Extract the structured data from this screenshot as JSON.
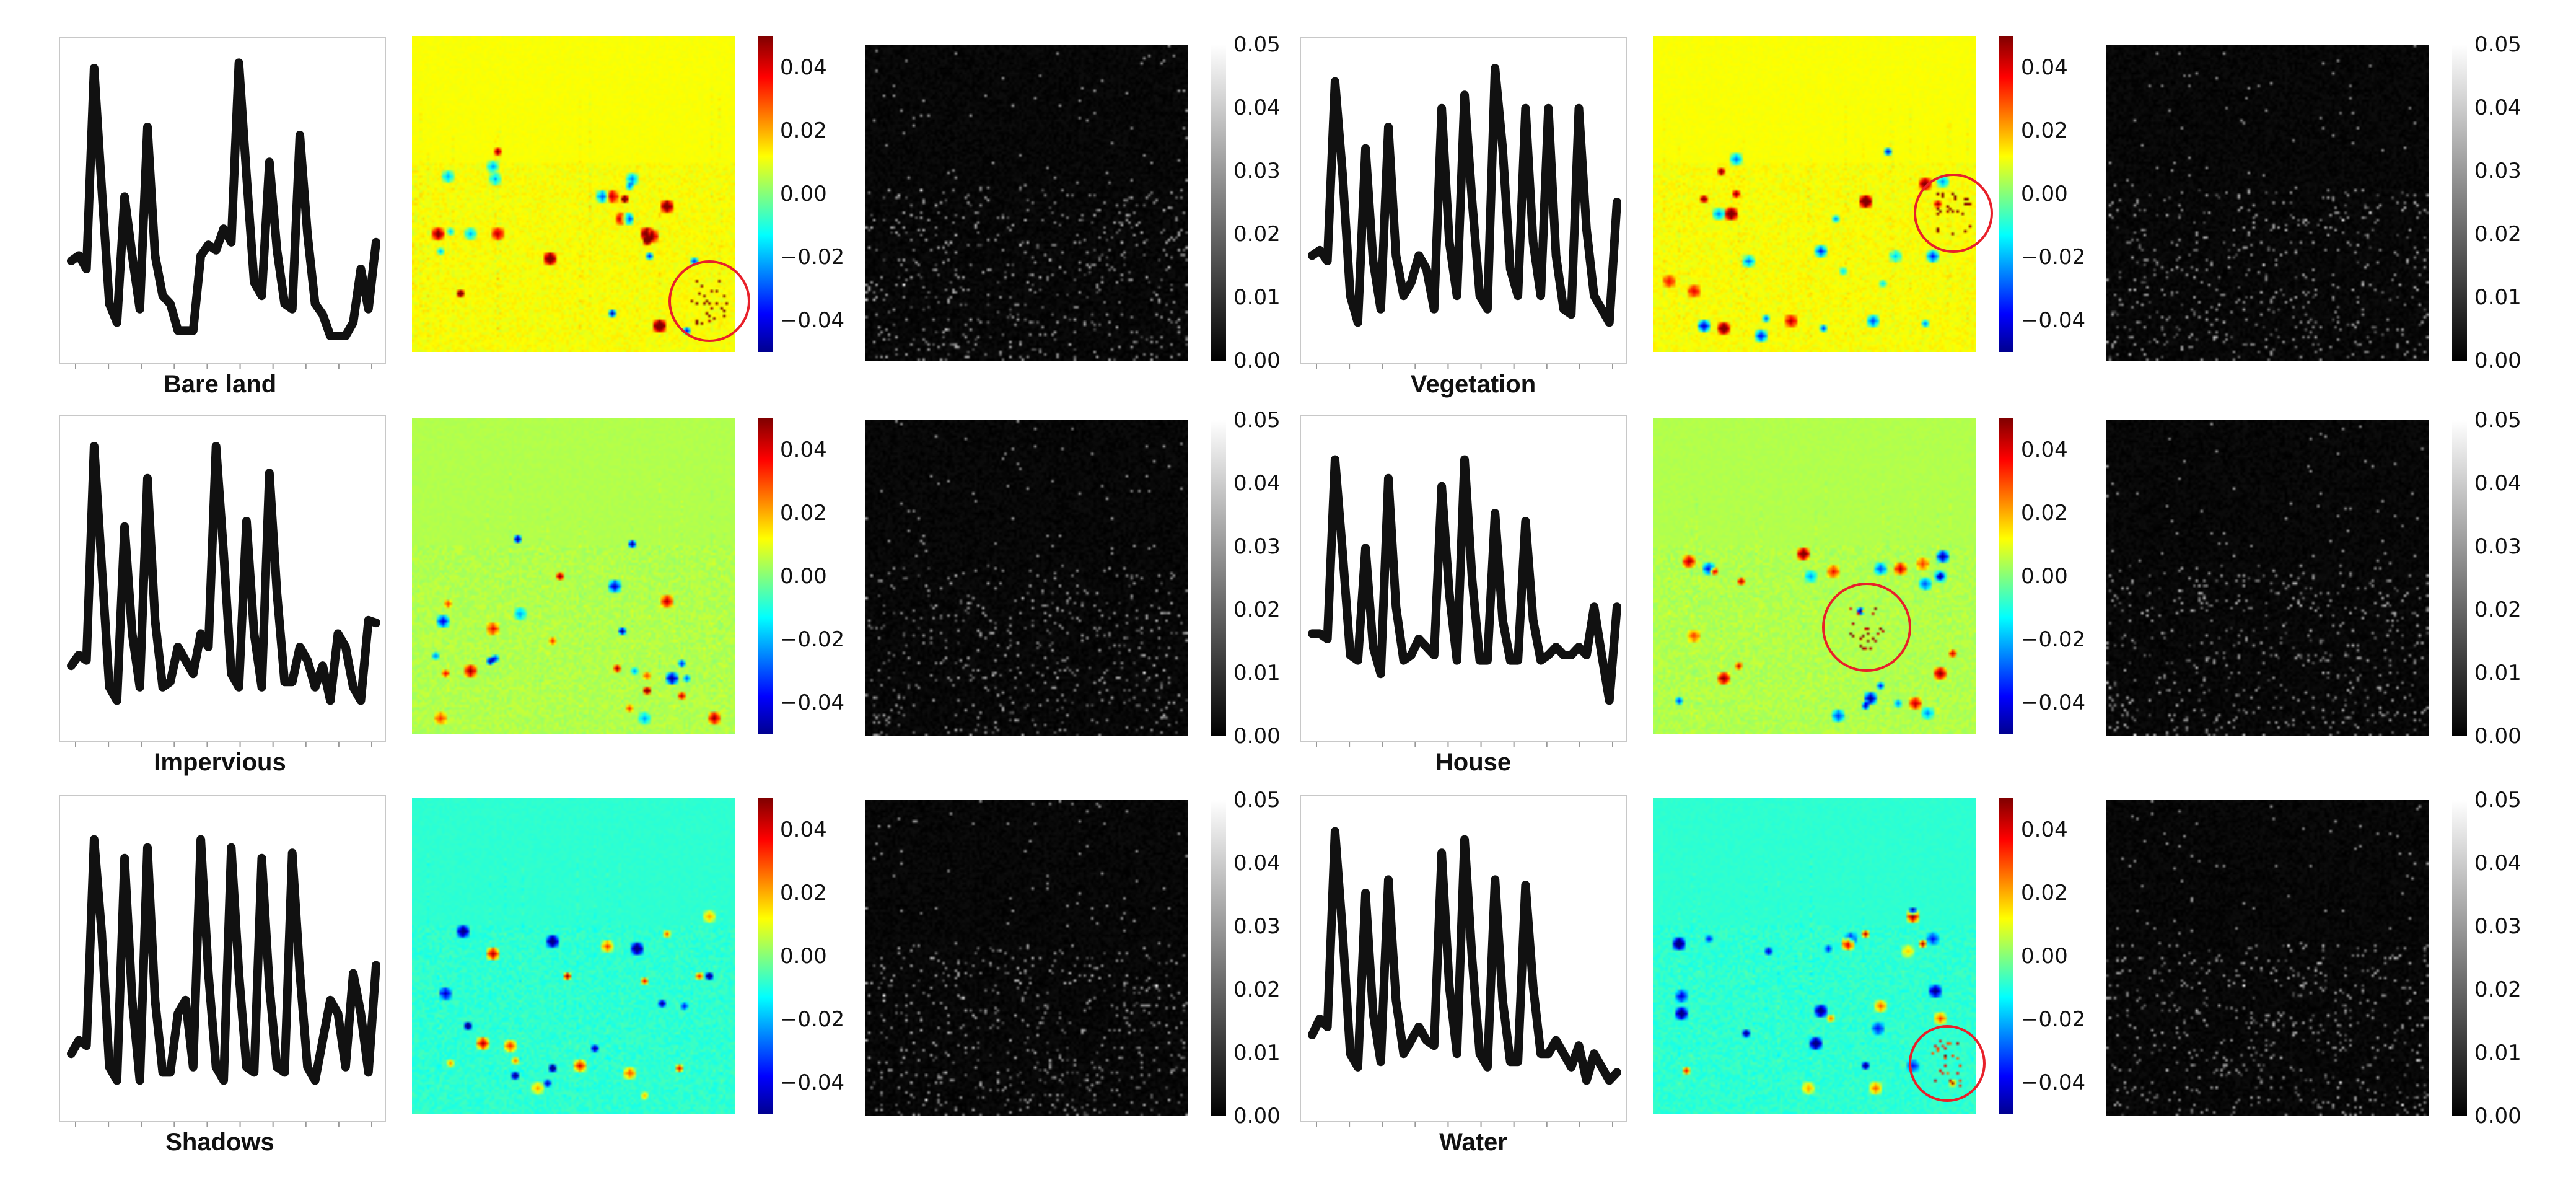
{
  "figure": {
    "panels": [
      {
        "id": "bare-land",
        "label": "Bare land",
        "circle": true
      },
      {
        "id": "vegetation",
        "label": "Vegetation",
        "circle": true
      },
      {
        "id": "impervious",
        "label": "Impervious",
        "circle": false
      },
      {
        "id": "house",
        "label": "House",
        "circle": true
      },
      {
        "id": "shadows",
        "label": "Shadows",
        "circle": false
      },
      {
        "id": "water",
        "label": "Water",
        "circle": true
      }
    ],
    "colorbar_diverging": {
      "colormap": "jet",
      "ticks": [
        "0.04",
        "0.02",
        "0.00",
        "−0.02",
        "−0.04"
      ],
      "range": [
        -0.05,
        0.05
      ]
    },
    "colorbar_gray": {
      "colormap": "gray",
      "ticks": [
        "0.05",
        "0.04",
        "0.03",
        "0.02",
        "0.01",
        "0.00"
      ],
      "range": [
        0,
        0.05
      ]
    },
    "circle_color": "#e8202a",
    "spectrum_color": "#111111"
  },
  "chart_data": [
    {
      "type": "line",
      "name": "Bare land spectrum",
      "values": [
        0.28,
        0.3,
        0.25,
        1.0,
        0.55,
        0.12,
        0.05,
        0.52,
        0.3,
        0.1,
        0.78,
        0.3,
        0.15,
        0.12,
        0.02,
        0.02,
        0.02,
        0.3,
        0.34,
        0.32,
        0.4,
        0.35,
        1.02,
        0.6,
        0.2,
        0.15,
        0.65,
        0.32,
        0.12,
        0.1,
        0.75,
        0.38,
        0.12,
        0.08,
        0.0,
        0.0,
        0.0,
        0.05,
        0.25,
        0.1,
        0.35
      ]
    },
    {
      "type": "line",
      "name": "Vegetation spectrum",
      "values": [
        0.3,
        0.32,
        0.28,
        0.95,
        0.6,
        0.15,
        0.05,
        0.7,
        0.28,
        0.1,
        0.78,
        0.3,
        0.15,
        0.2,
        0.3,
        0.25,
        0.1,
        0.85,
        0.35,
        0.15,
        0.9,
        0.5,
        0.15,
        0.1,
        1.0,
        0.7,
        0.25,
        0.15,
        0.85,
        0.35,
        0.15,
        0.85,
        0.3,
        0.1,
        0.08,
        0.85,
        0.4,
        0.15,
        0.1,
        0.05,
        0.5
      ]
    },
    {
      "type": "line",
      "name": "Impervious spectrum",
      "values": [
        0.18,
        0.22,
        0.2,
        1.0,
        0.55,
        0.1,
        0.05,
        0.7,
        0.3,
        0.1,
        0.88,
        0.35,
        0.1,
        0.12,
        0.25,
        0.2,
        0.15,
        0.3,
        0.25,
        1.0,
        0.6,
        0.15,
        0.1,
        0.72,
        0.3,
        0.1,
        0.9,
        0.45,
        0.12,
        0.12,
        0.25,
        0.2,
        0.1,
        0.18,
        0.05,
        0.3,
        0.25,
        0.1,
        0.05,
        0.35,
        0.34
      ]
    },
    {
      "type": "line",
      "name": "House spectrum",
      "values": [
        0.3,
        0.3,
        0.28,
        0.95,
        0.6,
        0.22,
        0.2,
        0.62,
        0.25,
        0.15,
        0.88,
        0.4,
        0.2,
        0.22,
        0.28,
        0.25,
        0.22,
        0.85,
        0.45,
        0.2,
        0.95,
        0.5,
        0.2,
        0.2,
        0.75,
        0.35,
        0.2,
        0.2,
        0.72,
        0.35,
        0.2,
        0.22,
        0.25,
        0.22,
        0.22,
        0.25,
        0.22,
        0.4,
        0.22,
        0.05,
        0.4
      ]
    },
    {
      "type": "line",
      "name": "Shadows spectrum",
      "values": [
        0.15,
        0.2,
        0.18,
        0.95,
        0.6,
        0.1,
        0.05,
        0.88,
        0.35,
        0.05,
        0.92,
        0.35,
        0.08,
        0.08,
        0.3,
        0.35,
        0.1,
        0.95,
        0.45,
        0.1,
        0.05,
        0.92,
        0.45,
        0.1,
        0.08,
        0.88,
        0.4,
        0.1,
        0.08,
        0.9,
        0.45,
        0.1,
        0.05,
        0.2,
        0.35,
        0.3,
        0.1,
        0.45,
        0.3,
        0.08,
        0.48
      ]
    },
    {
      "type": "line",
      "name": "Water spectrum",
      "values": [
        0.22,
        0.28,
        0.25,
        0.98,
        0.6,
        0.15,
        0.1,
        0.75,
        0.3,
        0.12,
        0.8,
        0.35,
        0.15,
        0.2,
        0.25,
        0.2,
        0.18,
        0.9,
        0.4,
        0.15,
        0.95,
        0.5,
        0.15,
        0.1,
        0.8,
        0.35,
        0.12,
        0.12,
        0.78,
        0.4,
        0.15,
        0.15,
        0.2,
        0.15,
        0.1,
        0.18,
        0.05,
        0.15,
        0.1,
        0.05,
        0.08
      ]
    }
  ]
}
